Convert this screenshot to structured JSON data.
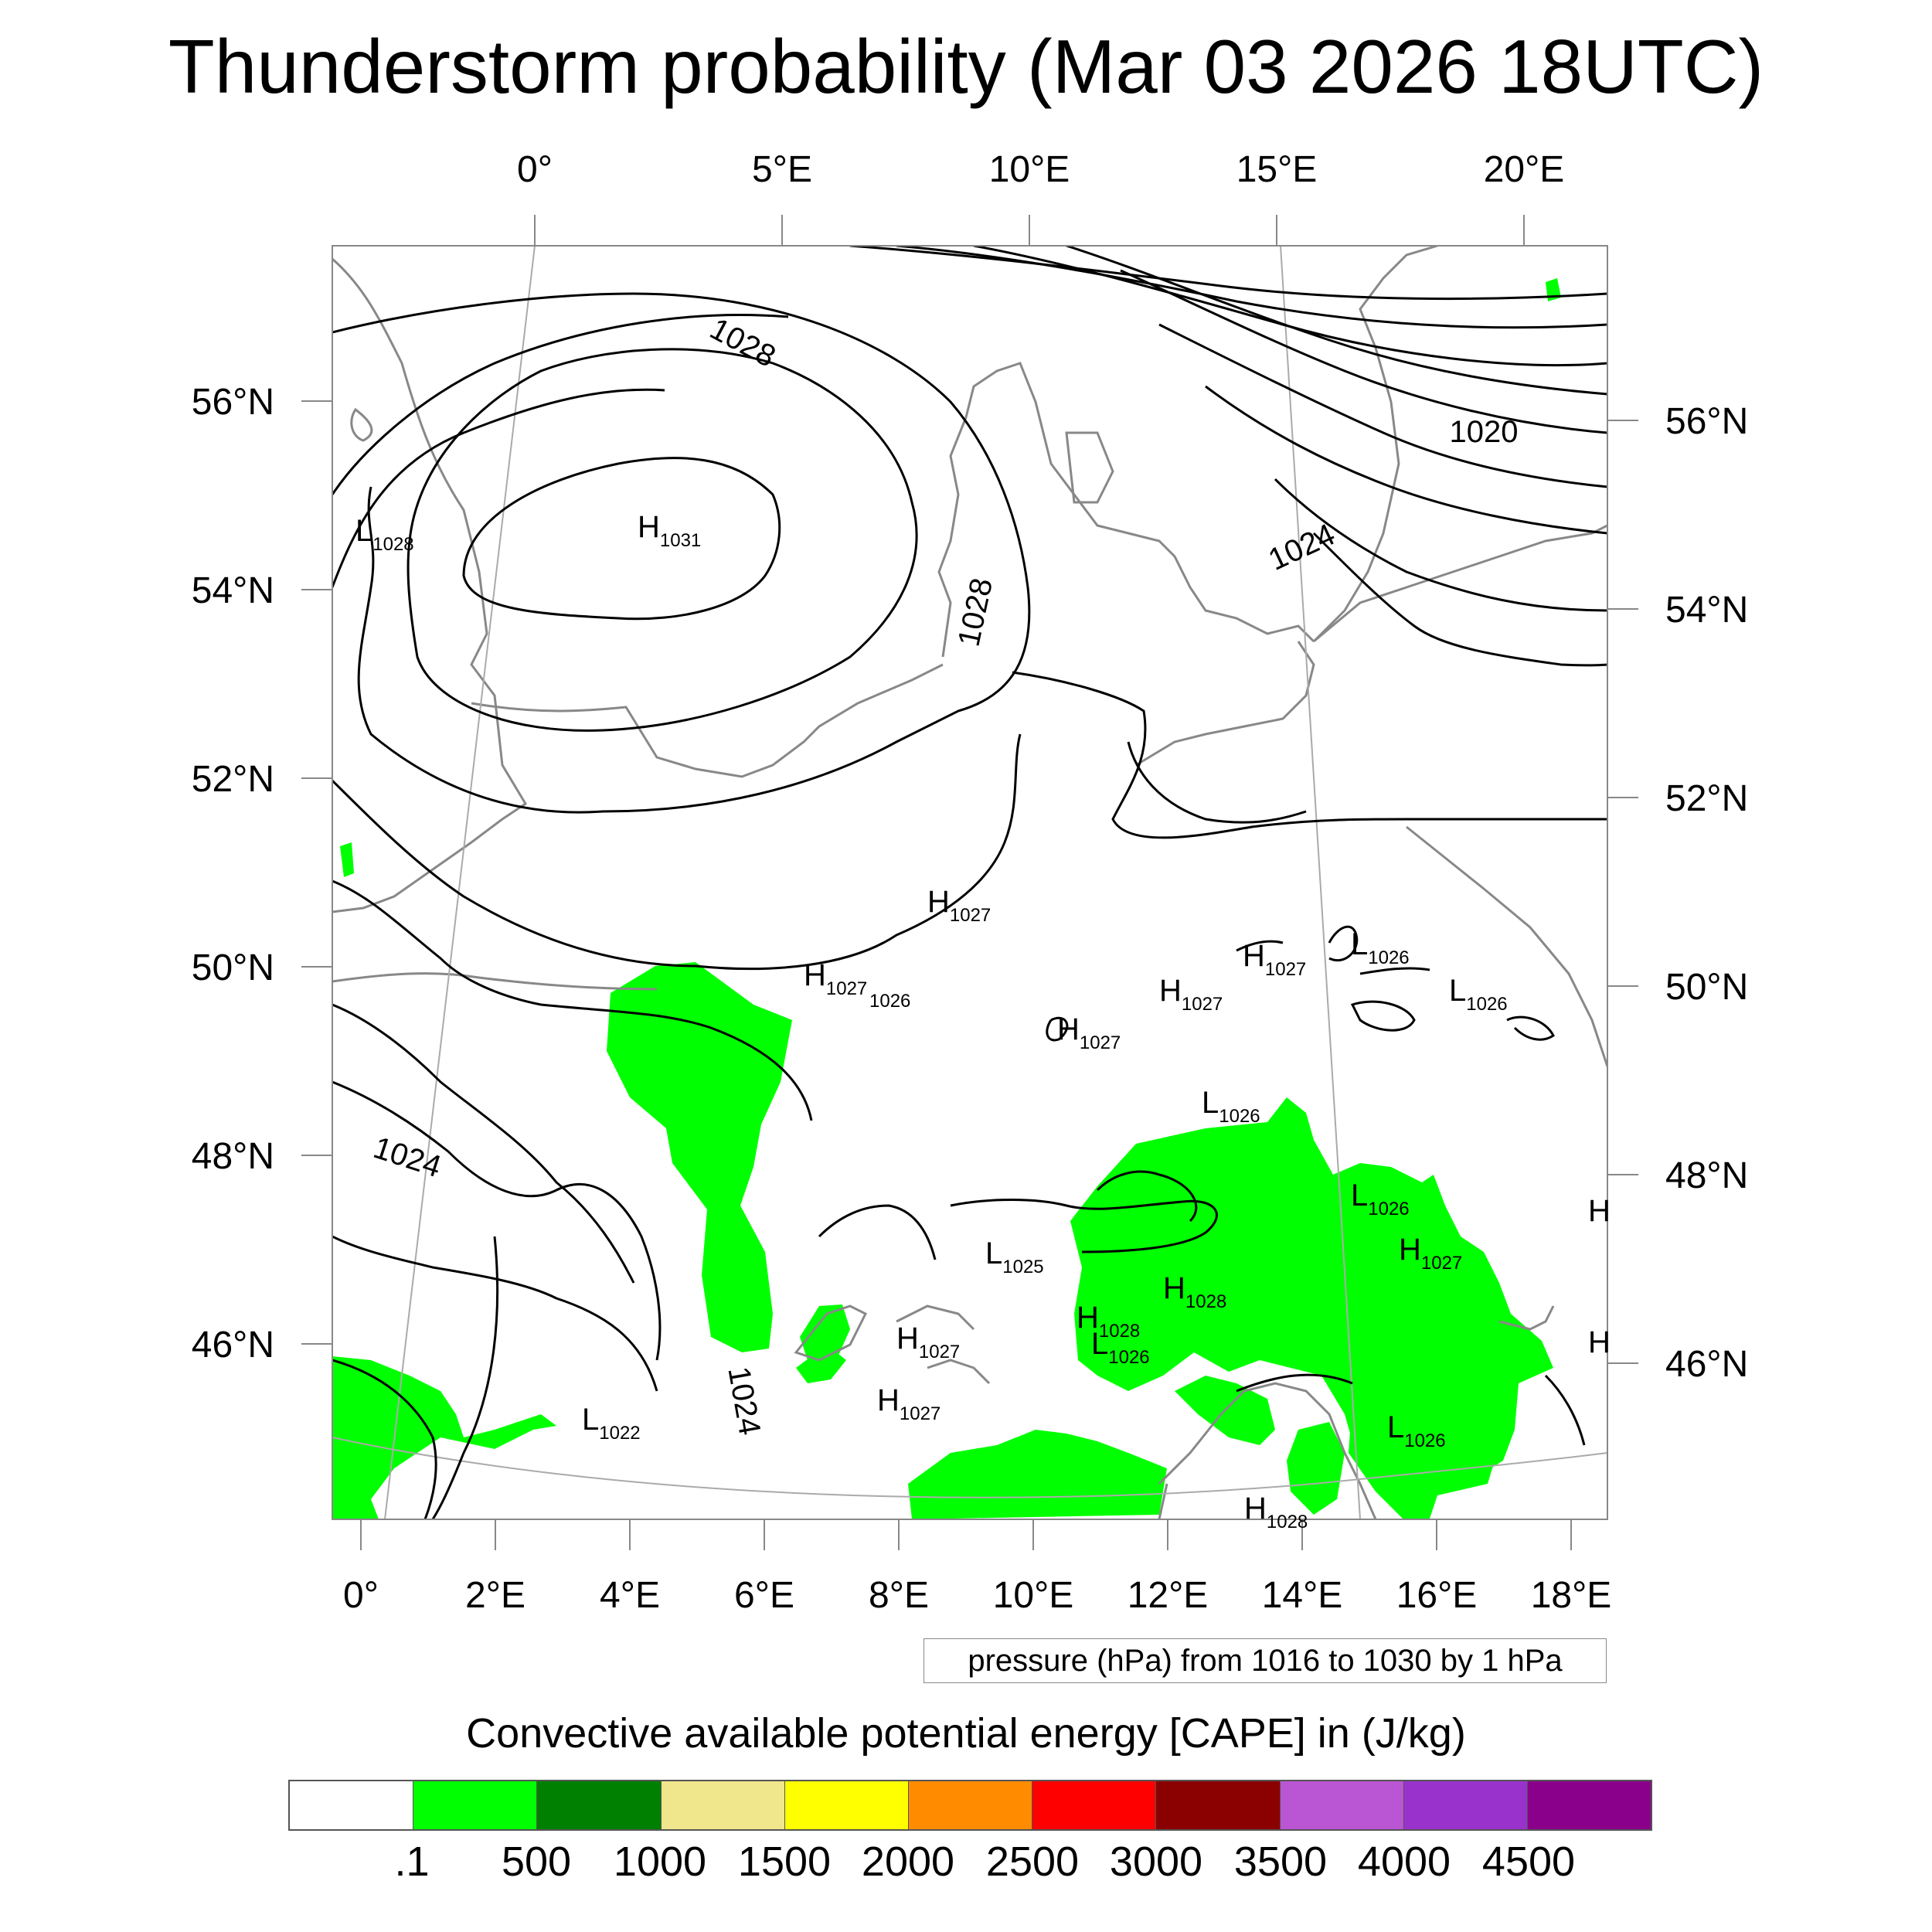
{
  "title": "Thunderstorm probability (Mar 03 2026 18UTC)",
  "map": {
    "top_lon_labels": [
      "0°",
      "5°E",
      "10°E",
      "15°E",
      "20°E"
    ],
    "bottom_lon_labels": [
      "0°",
      "2°E",
      "4°E",
      "6°E",
      "8°E",
      "10°E",
      "12°E",
      "14°E",
      "16°E",
      "18°E"
    ],
    "left_lat_labels": [
      "56°N",
      "54°N",
      "52°N",
      "50°N",
      "48°N",
      "46°N"
    ],
    "right_lat_labels": [
      "56°N",
      "54°N",
      "52°N",
      "50°N",
      "48°N",
      "46°N"
    ],
    "isobar_labels": [
      "1028",
      "1020",
      "1028",
      "1024",
      "1024",
      "1024"
    ],
    "pressure_centers": [
      {
        "letter": "L",
        "value": "1028"
      },
      {
        "letter": "H",
        "value": "1031"
      },
      {
        "letter": "H",
        "value": "1027"
      },
      {
        "letter": "H",
        "value": "1027"
      },
      {
        "letter": "",
        "value": "1026"
      },
      {
        "letter": "H",
        "value": "1027"
      },
      {
        "letter": "H",
        "value": "1027"
      },
      {
        "letter": "H",
        "value": "1027"
      },
      {
        "letter": "L",
        "value": "1026"
      },
      {
        "letter": "L",
        "value": "1026"
      },
      {
        "letter": "L",
        "value": "1026"
      },
      {
        "letter": "L",
        "value": "1026"
      },
      {
        "letter": "H",
        "value": "1027"
      },
      {
        "letter": "L",
        "value": "1025"
      },
      {
        "letter": "H",
        "value": "1028"
      },
      {
        "letter": "H",
        "value": "1028"
      },
      {
        "letter": "L",
        "value": "1026"
      },
      {
        "letter": "H",
        "value": "1027"
      },
      {
        "letter": "H",
        "value": "1027"
      },
      {
        "letter": "L",
        "value": "1022"
      },
      {
        "letter": "L",
        "value": "1026"
      },
      {
        "letter": "H",
        "value": "1028"
      },
      {
        "letter": "H",
        "value": ""
      },
      {
        "letter": "H",
        "value": ""
      }
    ],
    "colors": {
      "cape_low": "#00ff00",
      "coast": "#888888",
      "isobar": "#000000",
      "frame": "#888888"
    }
  },
  "pressure_note": "pressure (hPa) from 1016 to 1030 by 1 hPa",
  "colorbar": {
    "title": "Convective available potential energy [CAPE] in (J/kg)",
    "colors": [
      "#ffffff",
      "#00ff00",
      "#008000",
      "#f0e68c",
      "#ffff00",
      "#ff8c00",
      "#ff0000",
      "#8b0000",
      "#ba55d3",
      "#9932cc",
      "#8b008b"
    ],
    "tick_labels": [
      ".1",
      "500",
      "1000",
      "1500",
      "2000",
      "2500",
      "3000",
      "3500",
      "4000",
      "4500"
    ]
  }
}
